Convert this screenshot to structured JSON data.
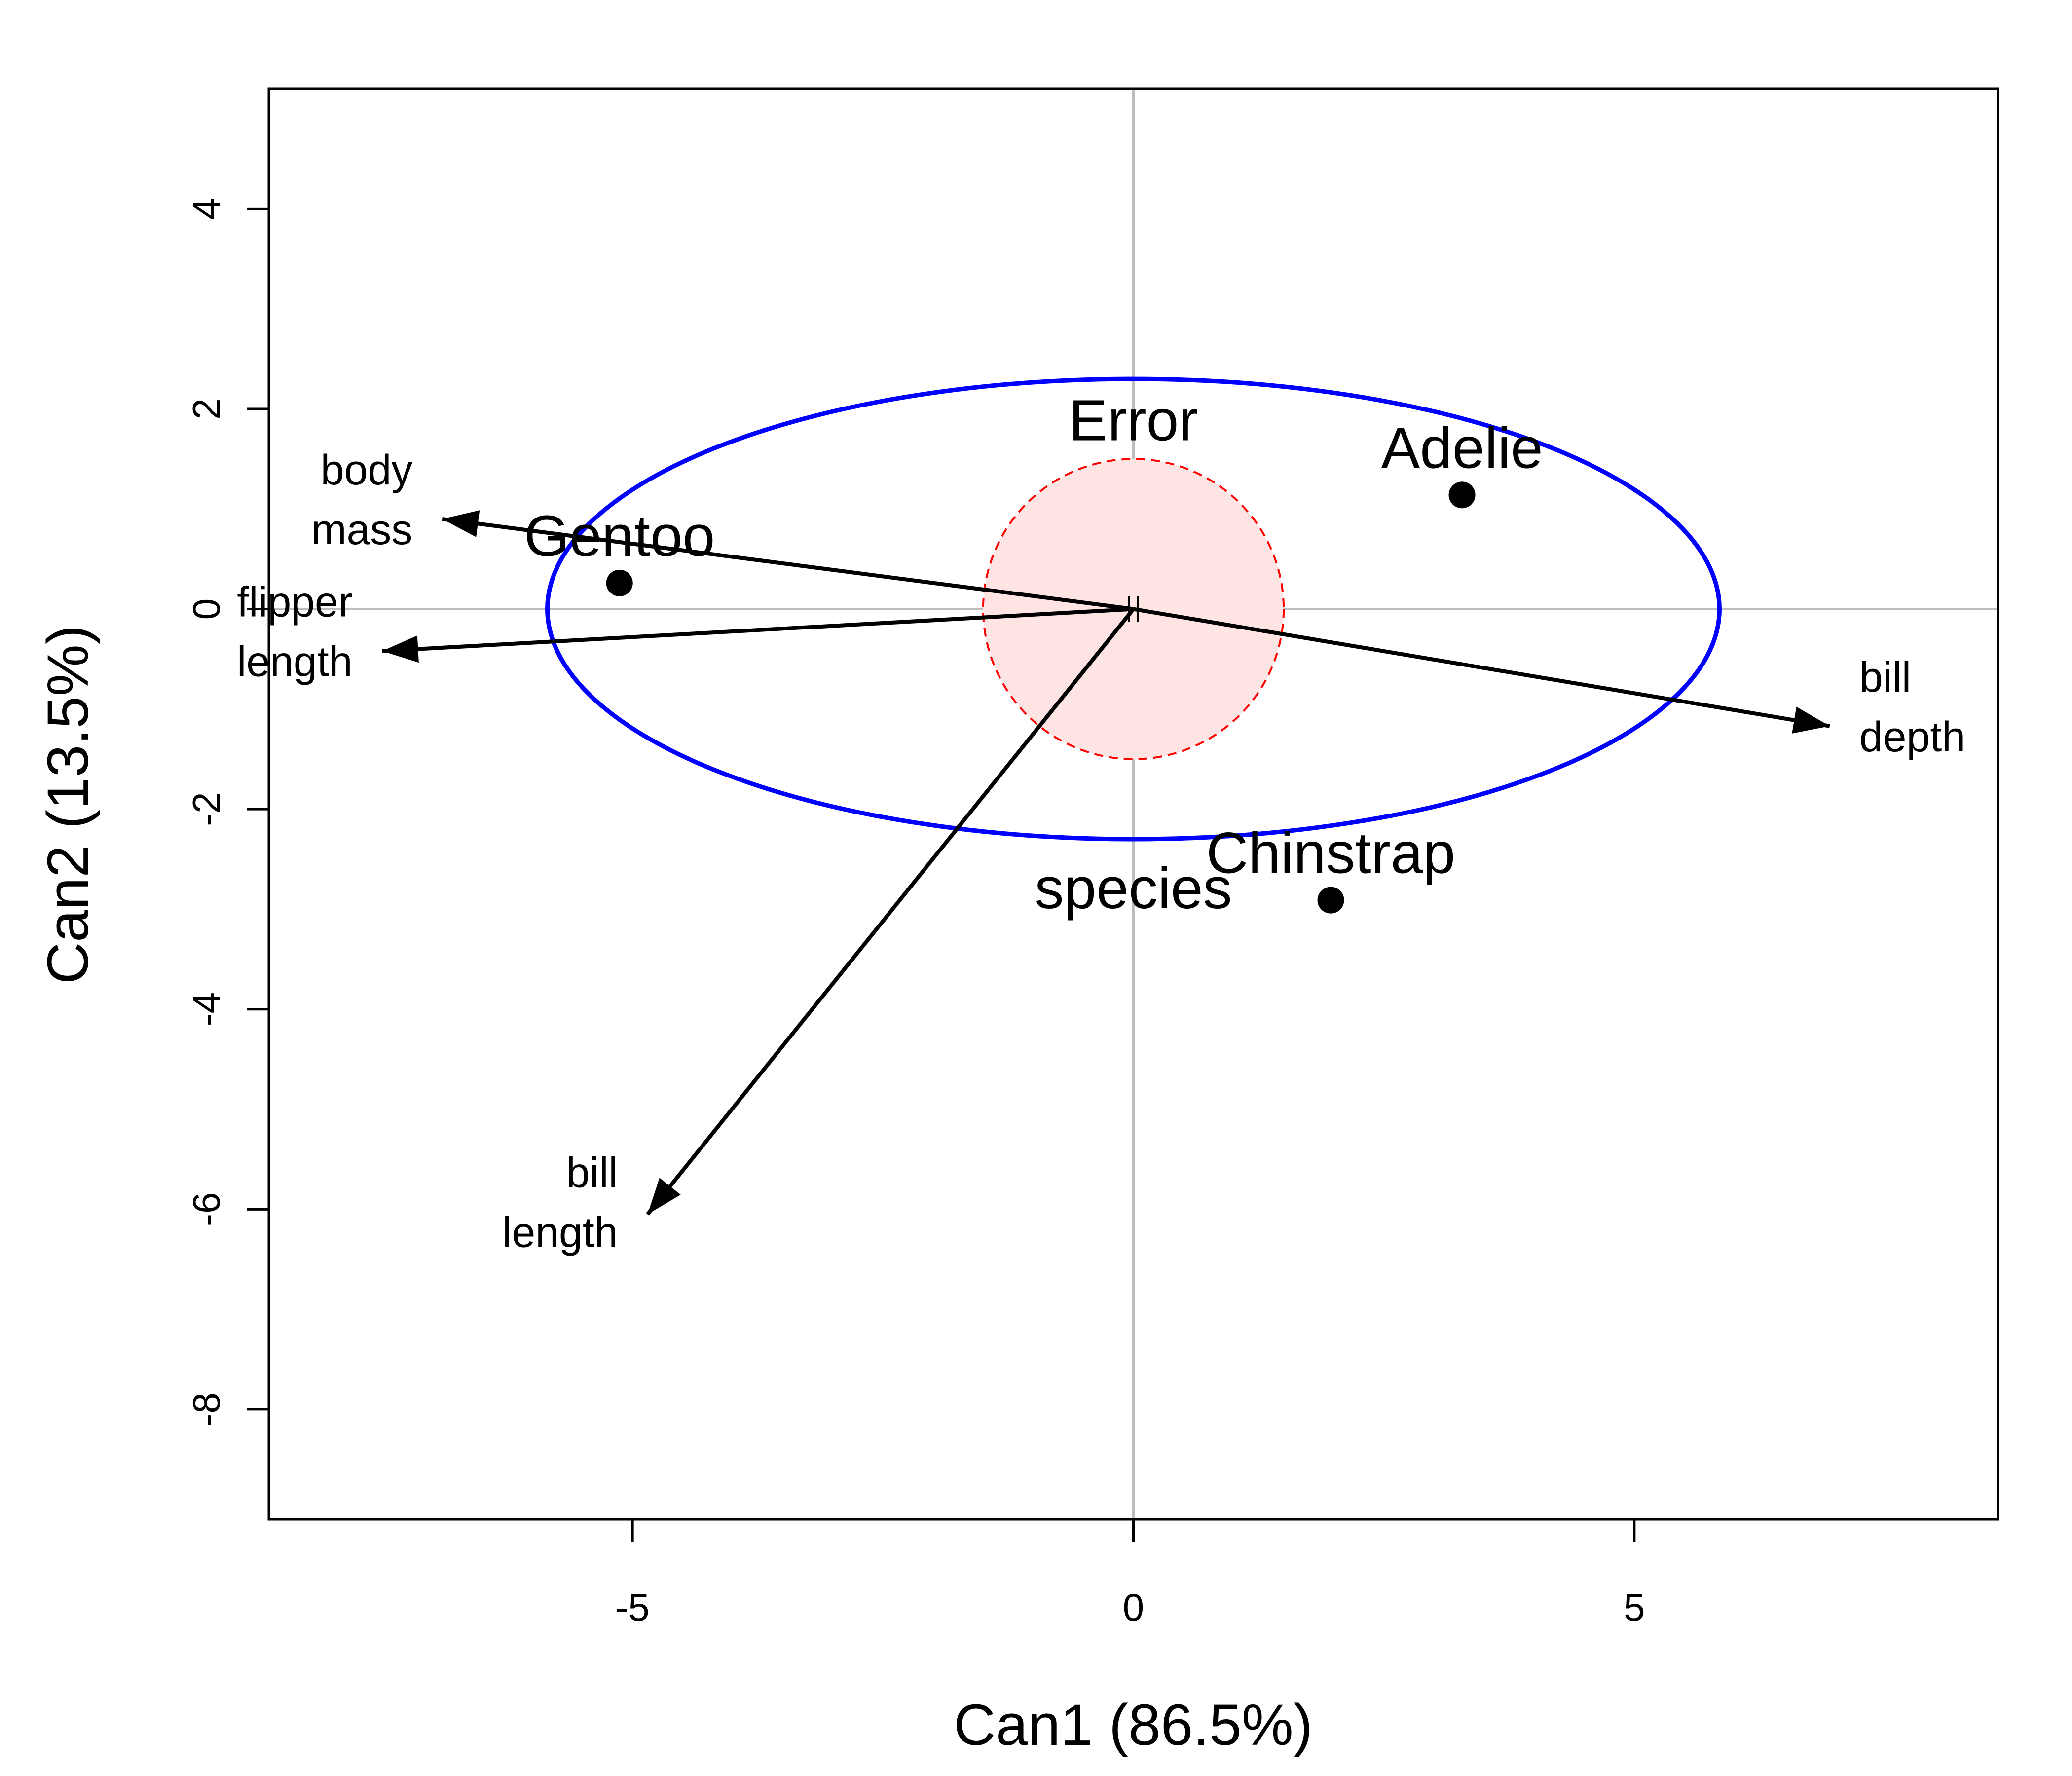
{
  "chart_data": {
    "type": "scatter",
    "xlabel": "Can1 (86.5%)",
    "ylabel": "Can2 (13.5%)",
    "xlim": [
      -8.63,
      8.63
    ],
    "ylim": [
      -9.1,
      5.2
    ],
    "xticks": [
      -5,
      0,
      5
    ],
    "yticks": [
      -8,
      -6,
      -4,
      -2,
      0,
      2,
      4
    ],
    "xtick_labels": [
      "-5",
      "0",
      "5"
    ],
    "ytick_labels": [
      "-8",
      "-6",
      "-4",
      "-2",
      "0",
      "2",
      "4"
    ],
    "grid": "reference lines at x=0 and y=0",
    "points": [
      {
        "label": "Adelie",
        "x": 3.28,
        "y": 1.14
      },
      {
        "label": "Chinstrap",
        "x": 1.97,
        "y": -2.91
      },
      {
        "label": "Gentoo",
        "x": -5.13,
        "y": 0.26
      }
    ],
    "vectors": [
      {
        "label": [
          "body",
          "mass"
        ],
        "x": -6.9,
        "y": 0.9
      },
      {
        "label": [
          "flipper",
          "length"
        ],
        "x": -7.5,
        "y": -0.42
      },
      {
        "label": [
          "bill",
          "depth"
        ],
        "x": 6.95,
        "y": -1.17
      },
      {
        "label": [
          "bill",
          "length"
        ],
        "x": -4.85,
        "y": -6.05
      }
    ],
    "ellipses": [
      {
        "label": "species",
        "cx": 0,
        "cy": 0,
        "rx": 5.85,
        "ry": 2.3,
        "color": "#0000ff",
        "style": "solid"
      },
      {
        "label": "Error",
        "cx": 0,
        "cy": 0,
        "rx": 1.5,
        "ry": 1.5,
        "color": "#ff0000",
        "fill": "#ffe4e4",
        "style": "dashed"
      }
    ]
  }
}
